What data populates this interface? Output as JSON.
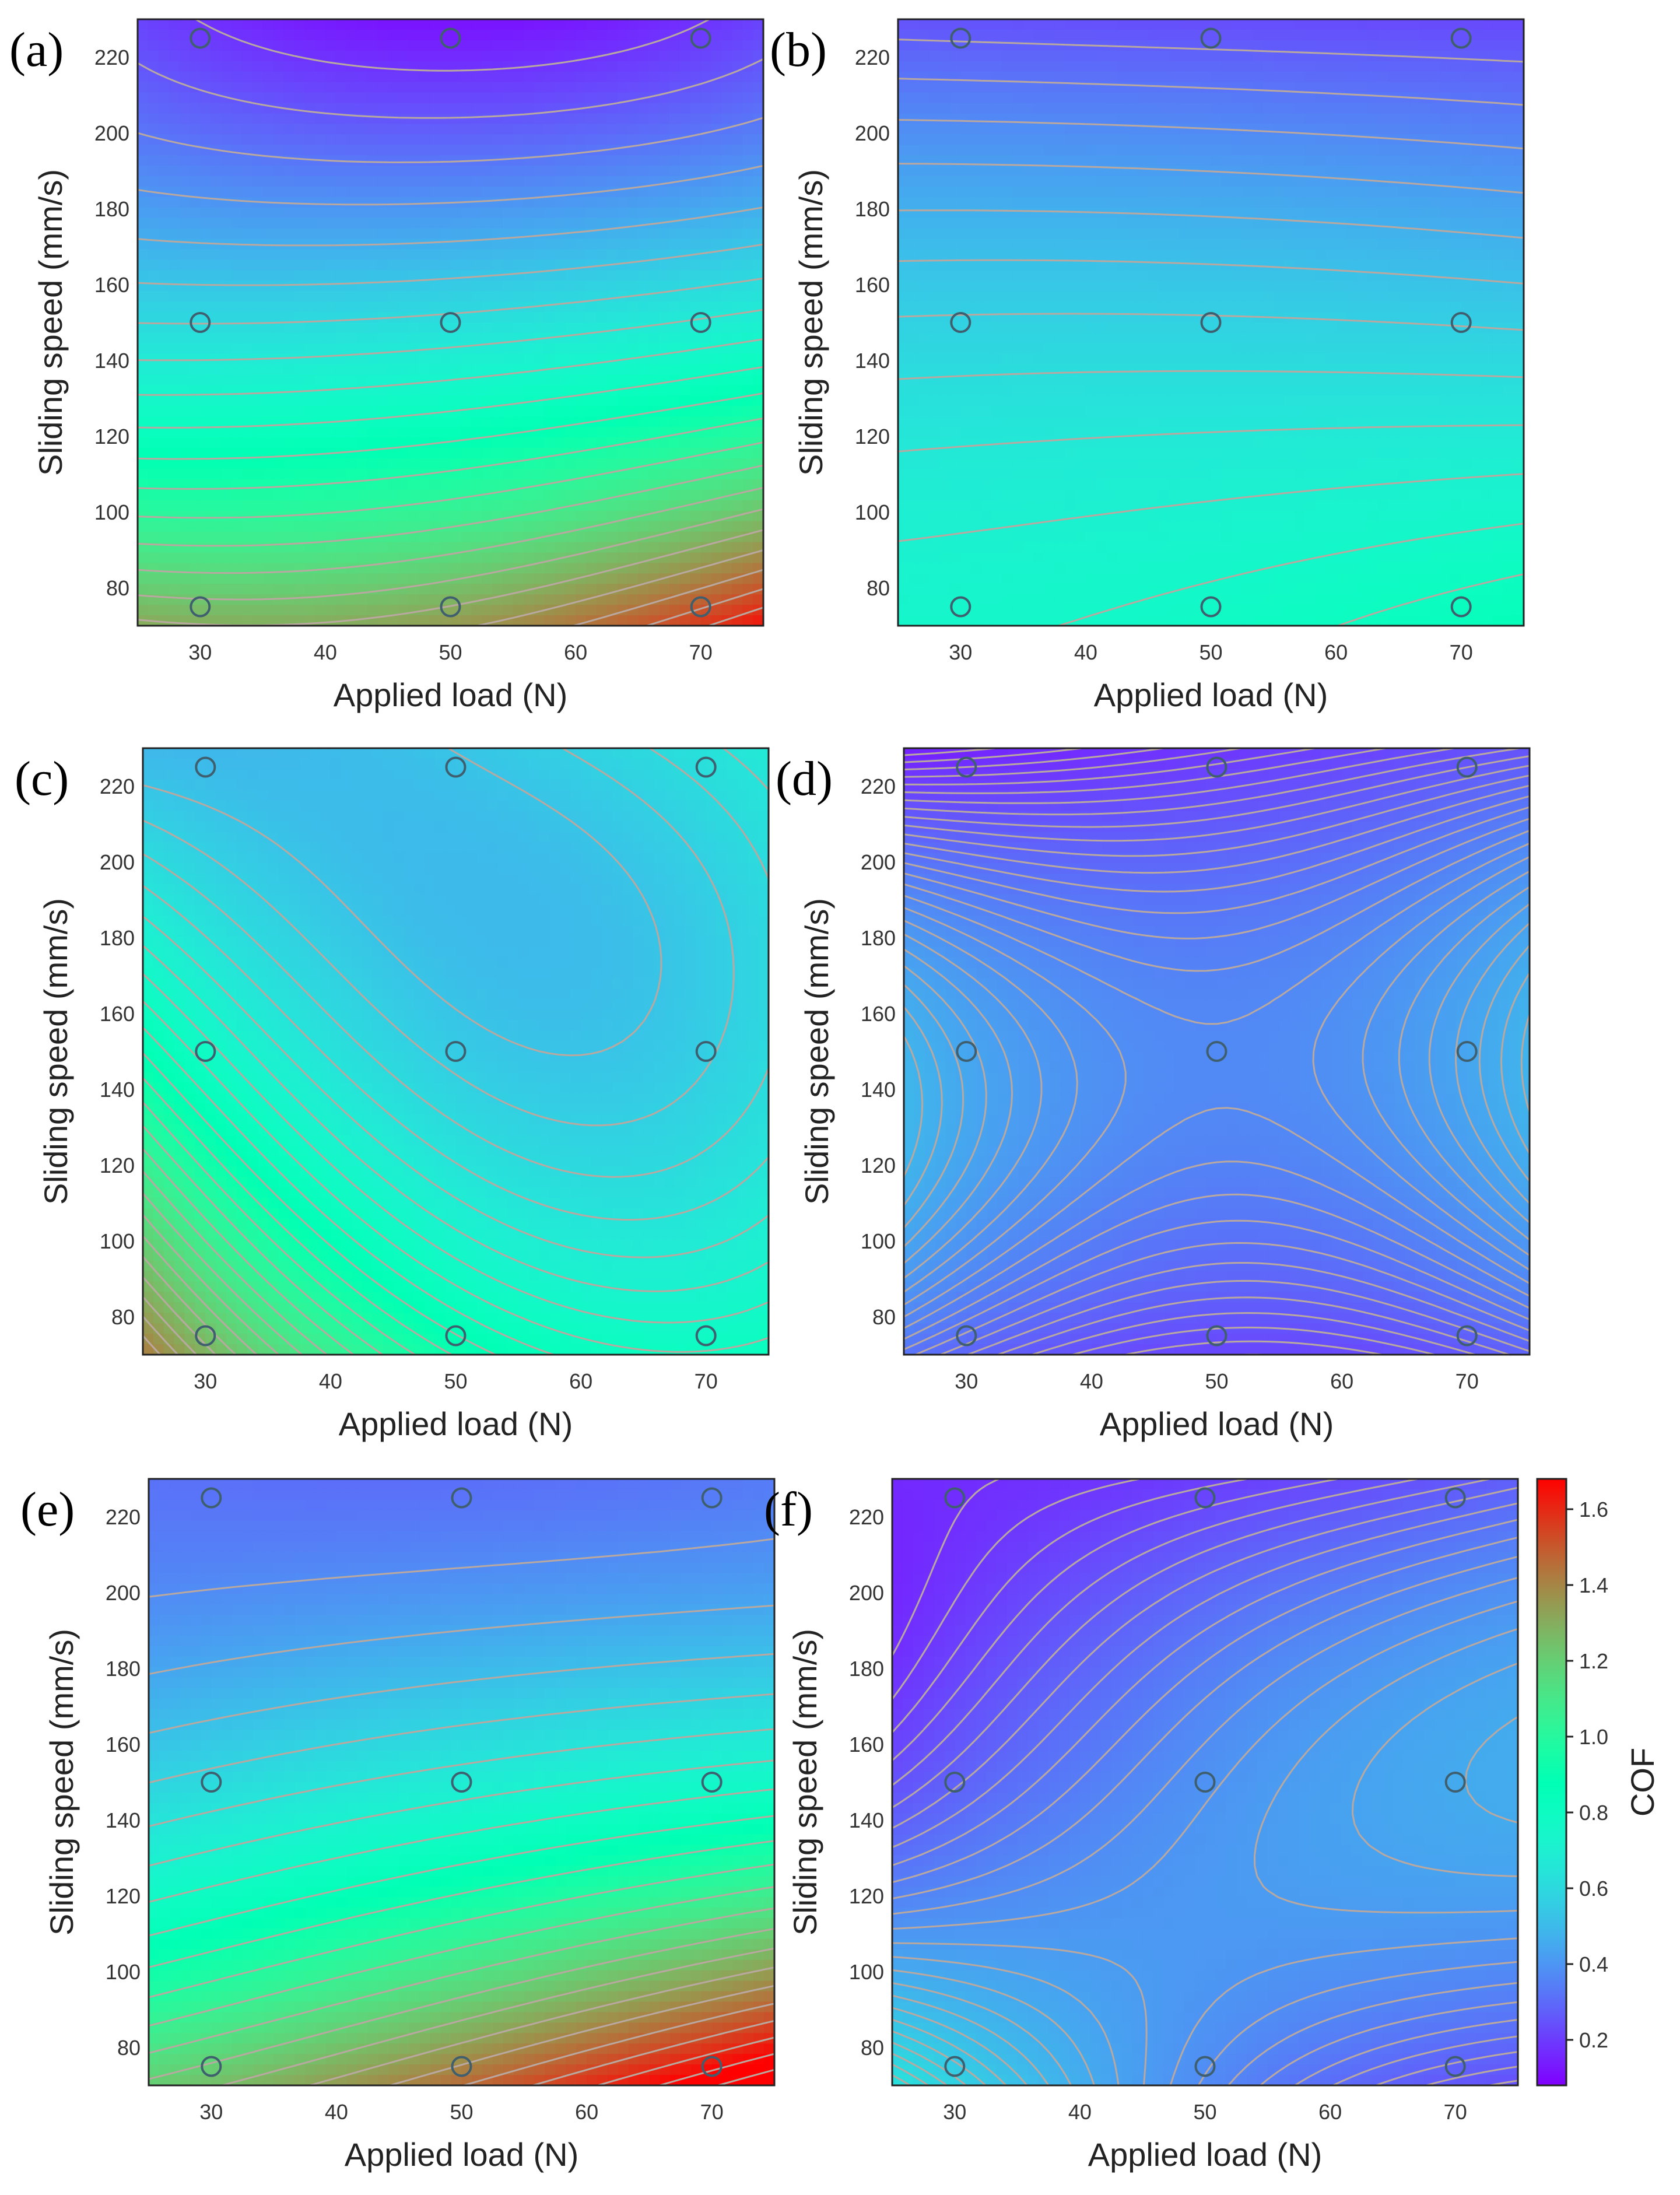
{
  "chart_data": {
    "type": "contour",
    "shared": {
      "xlabel": "Applied load (N)",
      "ylabel": "Sliding speed (mm/s)",
      "xlim": [
        25,
        75
      ],
      "ylim": [
        70,
        230
      ],
      "xticks": [
        30,
        40,
        50,
        60,
        70
      ],
      "yticks": [
        80,
        100,
        120,
        140,
        160,
        180,
        200,
        220
      ],
      "design_points": {
        "x": [
          30,
          50,
          70,
          30,
          50,
          70,
          30,
          50,
          70
        ],
        "y": [
          75,
          75,
          75,
          150,
          150,
          150,
          225,
          225,
          225
        ]
      }
    },
    "colorbar": {
      "label": "COF",
      "range": [
        0.08,
        1.68
      ],
      "ticks": [
        0.2,
        0.4,
        0.6,
        0.8,
        1.0,
        1.2,
        1.4,
        1.6
      ],
      "tick_labels": [
        "0.2",
        "0.4",
        "0.6",
        "0.8",
        "1.0",
        "1.2",
        "1.4",
        "1.6"
      ]
    },
    "panels": [
      {
        "label": "(a)",
        "levels": 22,
        "corner_values": {
          "x30_y75": 1.25,
          "x50_y75": 1.3,
          "x70_y75": 1.5,
          "x30_y150": 0.6,
          "x50_y150": 0.62,
          "x70_y150": 0.68,
          "x30_y225": 0.2,
          "x50_y225": 0.14,
          "x70_y225": 0.2
        }
      },
      {
        "label": "(b)",
        "levels": 13,
        "corner_values": {
          "x30_y75": 0.74,
          "x50_y75": 0.77,
          "x70_y75": 0.82,
          "x30_y150": 0.57,
          "x50_y150": 0.57,
          "x70_y150": 0.56,
          "x30_y225": 0.27,
          "x50_y225": 0.26,
          "x70_y225": 0.25
        }
      },
      {
        "label": "(c)",
        "levels": 24,
        "corner_values": {
          "x30_y75": 1.25,
          "x50_y75": 0.88,
          "x70_y75": 0.78,
          "x30_y150": 0.78,
          "x50_y150": 0.55,
          "x70_y150": 0.56,
          "x30_y225": 0.5,
          "x50_y225": 0.52,
          "x70_y225": 0.62
        }
      },
      {
        "label": "(d)",
        "levels": 26,
        "corner_values": {
          "x30_y75": 0.31,
          "x50_y75": 0.24,
          "x70_y75": 0.28,
          "x30_y150": 0.44,
          "x50_y150": 0.37,
          "x70_y150": 0.44,
          "x30_y225": 0.18,
          "x50_y225": 0.21,
          "x70_y225": 0.26
        }
      },
      {
        "label": "(e)",
        "levels": 22,
        "corner_values": {
          "x30_y75": 1.2,
          "x50_y75": 1.4,
          "x70_y75": 1.65,
          "x30_y150": 0.6,
          "x50_y150": 0.68,
          "x70_y150": 0.75,
          "x30_y225": 0.32,
          "x50_y225": 0.32,
          "x70_y225": 0.34
        }
      },
      {
        "label": "(f)",
        "levels": 26,
        "corner_values": {
          "x30_y75": 0.55,
          "x50_y75": 0.38,
          "x70_y75": 0.28,
          "x30_y150": 0.28,
          "x50_y150": 0.39,
          "x70_y150": 0.45,
          "x30_y225": 0.17,
          "x50_y225": 0.22,
          "x70_y225": 0.28
        }
      }
    ]
  }
}
